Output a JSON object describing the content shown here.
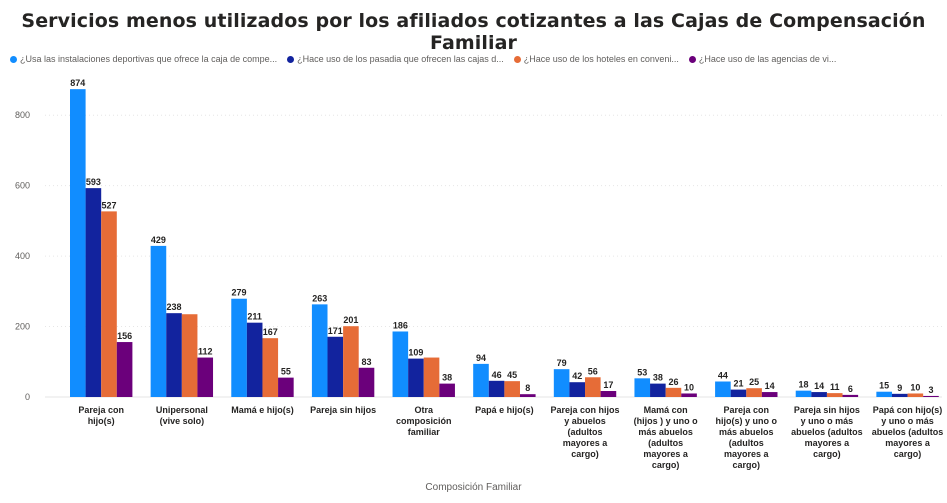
{
  "title": "Servicios menos utilizados por los afiliados cotizantes a las Cajas de Compensación Familiar",
  "legend": [
    {
      "label": "¿Usa las instalaciones deportivas que ofrece la caja de compe...",
      "color": "#118dff"
    },
    {
      "label": "¿Hace uso de los pasadia que ofrecen las cajas d...",
      "color": "#12239e"
    },
    {
      "label": "¿Hace uso de los hoteles en conveni...",
      "color": "#e66c37"
    },
    {
      "label": "¿Hace uso de las agencias de vi...",
      "color": "#6b007b"
    }
  ],
  "chart_data": {
    "type": "bar",
    "title": "Servicios menos utilizados por los afiliados cotizantes a las Cajas de Compensación Familiar",
    "xlabel": "Composición Familiar",
    "ylabel": "",
    "ylim": [
      0,
      900
    ],
    "yticks": [
      0,
      200,
      400,
      600,
      800
    ],
    "grid": true,
    "legend_position": "top",
    "categories": [
      "Pareja con hijo(s)",
      "Unipersonal (vive solo)",
      "Mamá e hijo(s)",
      "Pareja sin hijos",
      "Otra composición familiar",
      "Papá e hijo(s)",
      "Pareja con hijos y abuelos (adultos mayores a cargo)",
      "Mamá con (hijos ) y uno o más abuelos (adultos mayores a cargo)",
      "Pareja con hijo(s) y uno o más abuelos (adultos mayores a cargo)",
      "Pareja sin hijos y uno o más abuelos (adultos mayores a cargo)",
      "Papá con hijo(s) y uno o más abuelos (adultos mayores a cargo)"
    ],
    "category_lines": [
      [
        "Pareja con",
        "hijo(s)"
      ],
      [
        "Unipersonal",
        "(vive solo)"
      ],
      [
        "Mamá e hijo(s)"
      ],
      [
        "Pareja sin hijos"
      ],
      [
        "Otra",
        "composición",
        "familiar"
      ],
      [
        "Papá e hijo(s)"
      ],
      [
        "Pareja con hijos",
        "y abuelos",
        "(adultos",
        "mayores a",
        "cargo)"
      ],
      [
        "Mamá con",
        "(hijos ) y uno o",
        "más abuelos",
        "(adultos",
        "mayores a",
        "cargo)"
      ],
      [
        "Pareja con",
        "hijo(s) y uno o",
        "más abuelos",
        "(adultos",
        "mayores a",
        "cargo)"
      ],
      [
        "Pareja sin hijos",
        "y uno o más",
        "abuelos (adultos",
        "mayores a",
        "cargo)"
      ],
      [
        "Papá con hijo(s)",
        "y uno o más",
        "abuelos (adultos",
        "mayores a",
        "cargo)"
      ]
    ],
    "series": [
      {
        "name": "¿Usa las instalaciones deportivas que ofrece la caja de compe...",
        "color": "#118dff",
        "values": [
          874,
          429,
          279,
          263,
          186,
          94,
          79,
          53,
          44,
          18,
          15
        ]
      },
      {
        "name": "¿Hace uso de los pasadia que ofrecen las cajas d...",
        "color": "#12239e",
        "values": [
          593,
          238,
          211,
          171,
          109,
          46,
          42,
          38,
          21,
          14,
          9
        ]
      },
      {
        "name": "¿Hace uso de los hoteles en conveni...",
        "color": "#e66c37",
        "values": [
          527,
          235,
          167,
          201,
          112,
          45,
          56,
          26,
          25,
          11,
          10
        ]
      },
      {
        "name": "¿Hace uso de las agencias de vi...",
        "color": "#6b007b",
        "values": [
          156,
          112,
          55,
          83,
          38,
          8,
          17,
          10,
          14,
          6,
          3
        ]
      }
    ],
    "value_labels": [
      [
        "874",
        "593",
        "527",
        "156"
      ],
      [
        "429",
        "238",
        "",
        "112"
      ],
      [
        "279",
        "211",
        "167",
        "55"
      ],
      [
        "263",
        "171",
        "201",
        "83"
      ],
      [
        "186",
        "109",
        "",
        "38"
      ],
      [
        "94",
        "46",
        "45",
        "8"
      ],
      [
        "79",
        "42",
        "56",
        "17"
      ],
      [
        "53",
        "38",
        "26",
        "10"
      ],
      [
        "44",
        "21",
        "25",
        "14"
      ],
      [
        "18",
        "14",
        "11",
        "6"
      ],
      [
        "15",
        "9",
        "10",
        "3"
      ]
    ]
  }
}
